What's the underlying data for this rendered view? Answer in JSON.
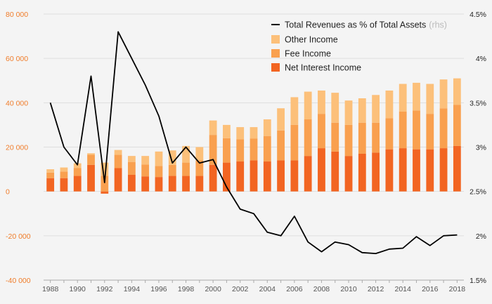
{
  "chart_data": {
    "type": "bar",
    "x": [
      1988,
      1989,
      1990,
      1991,
      1992,
      1993,
      1994,
      1995,
      1996,
      1997,
      1998,
      1999,
      2000,
      2001,
      2002,
      2003,
      2004,
      2005,
      2006,
      2007,
      2008,
      2009,
      2010,
      2011,
      2012,
      2013,
      2014,
      2015,
      2016,
      2017,
      2018
    ],
    "x_tick_labels": [
      "1988",
      "1990",
      "1992",
      "1994",
      "1996",
      "1998",
      "2000",
      "2002",
      "2004",
      "2006",
      "2008",
      "2010",
      "2012",
      "2014",
      "2016",
      "2018"
    ],
    "y_left_ticks": [
      "80 000",
      "60 000",
      "40 000",
      "20 000",
      "0",
      "-20 000",
      "-40 000"
    ],
    "y_right_ticks": [
      "4.5%",
      "4%",
      "3.5%",
      "3%",
      "2.5%",
      "2%",
      "1.5%"
    ],
    "ylim_left": [
      -40000,
      80000
    ],
    "ylim_right": [
      1.5,
      4.5
    ],
    "grid": "horizontal",
    "legend_position": "top-right",
    "series": [
      {
        "name": "Net Interest Income",
        "kind": "stacked-bar",
        "color": "#f26522",
        "values": [
          6000,
          6000,
          7000,
          12000,
          -1000,
          10500,
          7500,
          6800,
          6500,
          7000,
          7000,
          7000,
          12000,
          13000,
          13500,
          14000,
          13500,
          14000,
          14000,
          16000,
          19500,
          18000,
          16000,
          17000,
          17500,
          19000,
          19500,
          19000,
          19000,
          19500,
          20500
        ]
      },
      {
        "name": "Fee Income",
        "kind": "stacked-bar",
        "color": "#f9a04f",
        "values": [
          2500,
          3000,
          3500,
          4500,
          7000,
          6000,
          5800,
          5300,
          5000,
          5000,
          6000,
          7000,
          13500,
          11000,
          10000,
          9800,
          11500,
          13500,
          16000,
          16500,
          15500,
          13000,
          14000,
          14000,
          13500,
          14000,
          16500,
          17500,
          16000,
          18000,
          18500
        ]
      },
      {
        "name": "Other Income",
        "kind": "stacked-bar",
        "color": "#fcc07a",
        "values": [
          1500,
          1800,
          2200,
          700,
          6000,
          2200,
          2700,
          3900,
          6500,
          6500,
          7500,
          6000,
          6500,
          6000,
          5500,
          5200,
          7500,
          10000,
          12500,
          12500,
          10500,
          13500,
          11000,
          11000,
          12500,
          12500,
          12500,
          12500,
          13500,
          13000,
          12000
        ]
      },
      {
        "name": "Total Revenues as % of Total Assets",
        "name_suffix": "(rhs)",
        "kind": "line",
        "axis": "right",
        "color": "#000000",
        "values": [
          3.5,
          3.0,
          2.8,
          3.8,
          2.6,
          4.3,
          4.0,
          3.7,
          3.35,
          2.82,
          3.0,
          2.82,
          2.86,
          2.55,
          2.3,
          2.25,
          2.04,
          2.0,
          2.22,
          1.93,
          1.82,
          1.93,
          1.9,
          1.81,
          1.8,
          1.85,
          1.86,
          1.99,
          1.89,
          2.0,
          2.01
        ]
      }
    ]
  }
}
